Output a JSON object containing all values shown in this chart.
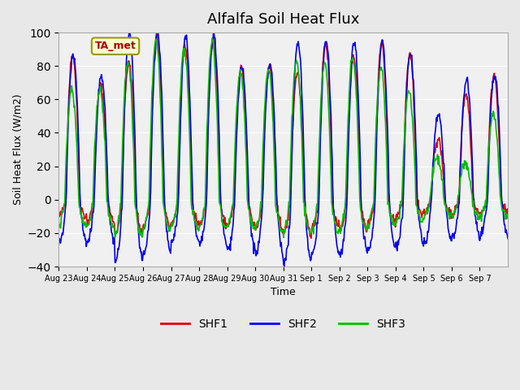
{
  "title": "Alfalfa Soil Heat Flux",
  "ylabel": "Soil Heat Flux (W/m2)",
  "xlabel": "Time",
  "ylim": [
    -40,
    100
  ],
  "annotation": "TA_met",
  "series_colors": {
    "SHF1": "#dd0000",
    "SHF2": "#0000ee",
    "SHF3": "#00bb00"
  },
  "bg_color": "#e8e8e8",
  "plot_bg": "#f0f0f0",
  "date_labels": [
    "Aug 23",
    "Aug 24",
    "Aug 25",
    "Aug 26",
    "Aug 27",
    "Aug 28",
    "Aug 29",
    "Aug 30",
    "Aug 31",
    "Sep 1",
    "Sep 2",
    "Sep 3",
    "Sep 4",
    "Sep 5",
    "Sep 6",
    "Sep 7"
  ],
  "n_days": 16,
  "grid_color": "#ffffff",
  "yticks": [
    -40,
    -20,
    0,
    20,
    40,
    60,
    80,
    100
  ]
}
